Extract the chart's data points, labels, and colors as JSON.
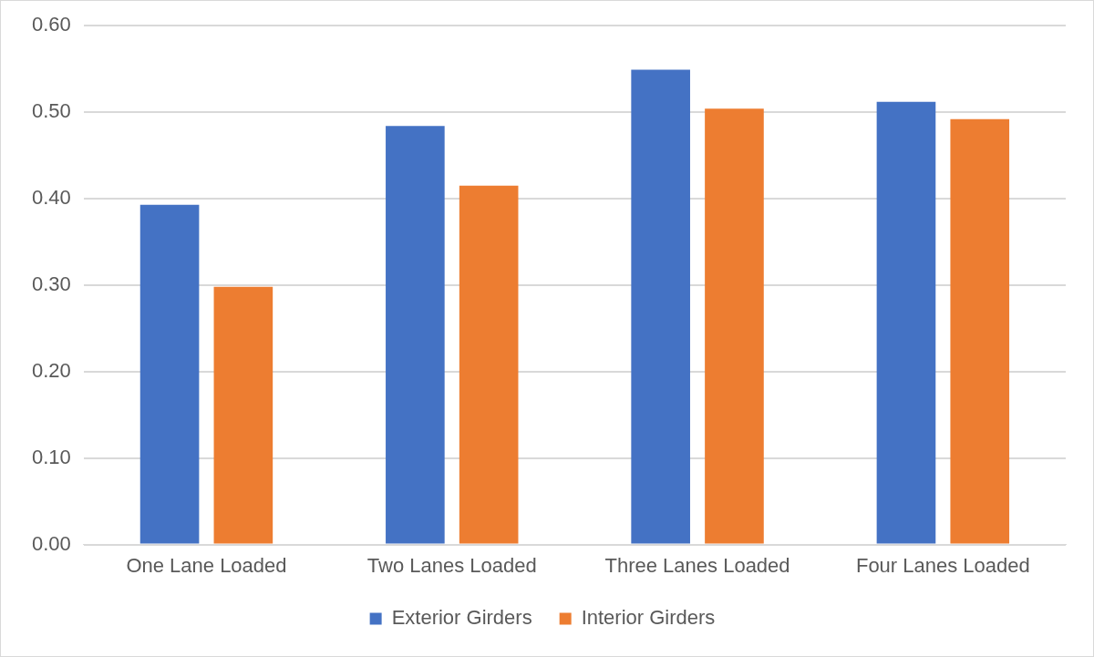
{
  "chart_data": {
    "type": "bar",
    "categories": [
      "One Lane Loaded",
      "Two Lanes Loaded",
      "Three Lanes Loaded",
      "Four Lanes Loaded"
    ],
    "series": [
      {
        "name": "Exterior Girders",
        "color": "#4472c4",
        "values": [
          0.393,
          0.484,
          0.549,
          0.512
        ]
      },
      {
        "name": "Interior Girders",
        "color": "#ed7d31",
        "values": [
          0.298,
          0.415,
          0.504,
          0.492
        ]
      }
    ],
    "ylim": [
      0,
      0.6
    ],
    "yticks": [
      {
        "value": 0,
        "label": "0.00"
      },
      {
        "value": 0.1,
        "label": "0.10"
      },
      {
        "value": 0.2,
        "label": "0.20"
      },
      {
        "value": 0.3,
        "label": "0.30"
      },
      {
        "value": 0.4,
        "label": "0.40"
      },
      {
        "value": 0.5,
        "label": "0.50"
      },
      {
        "value": 0.6,
        "label": "0.60"
      }
    ],
    "grid": "y",
    "legend": "bottom"
  }
}
